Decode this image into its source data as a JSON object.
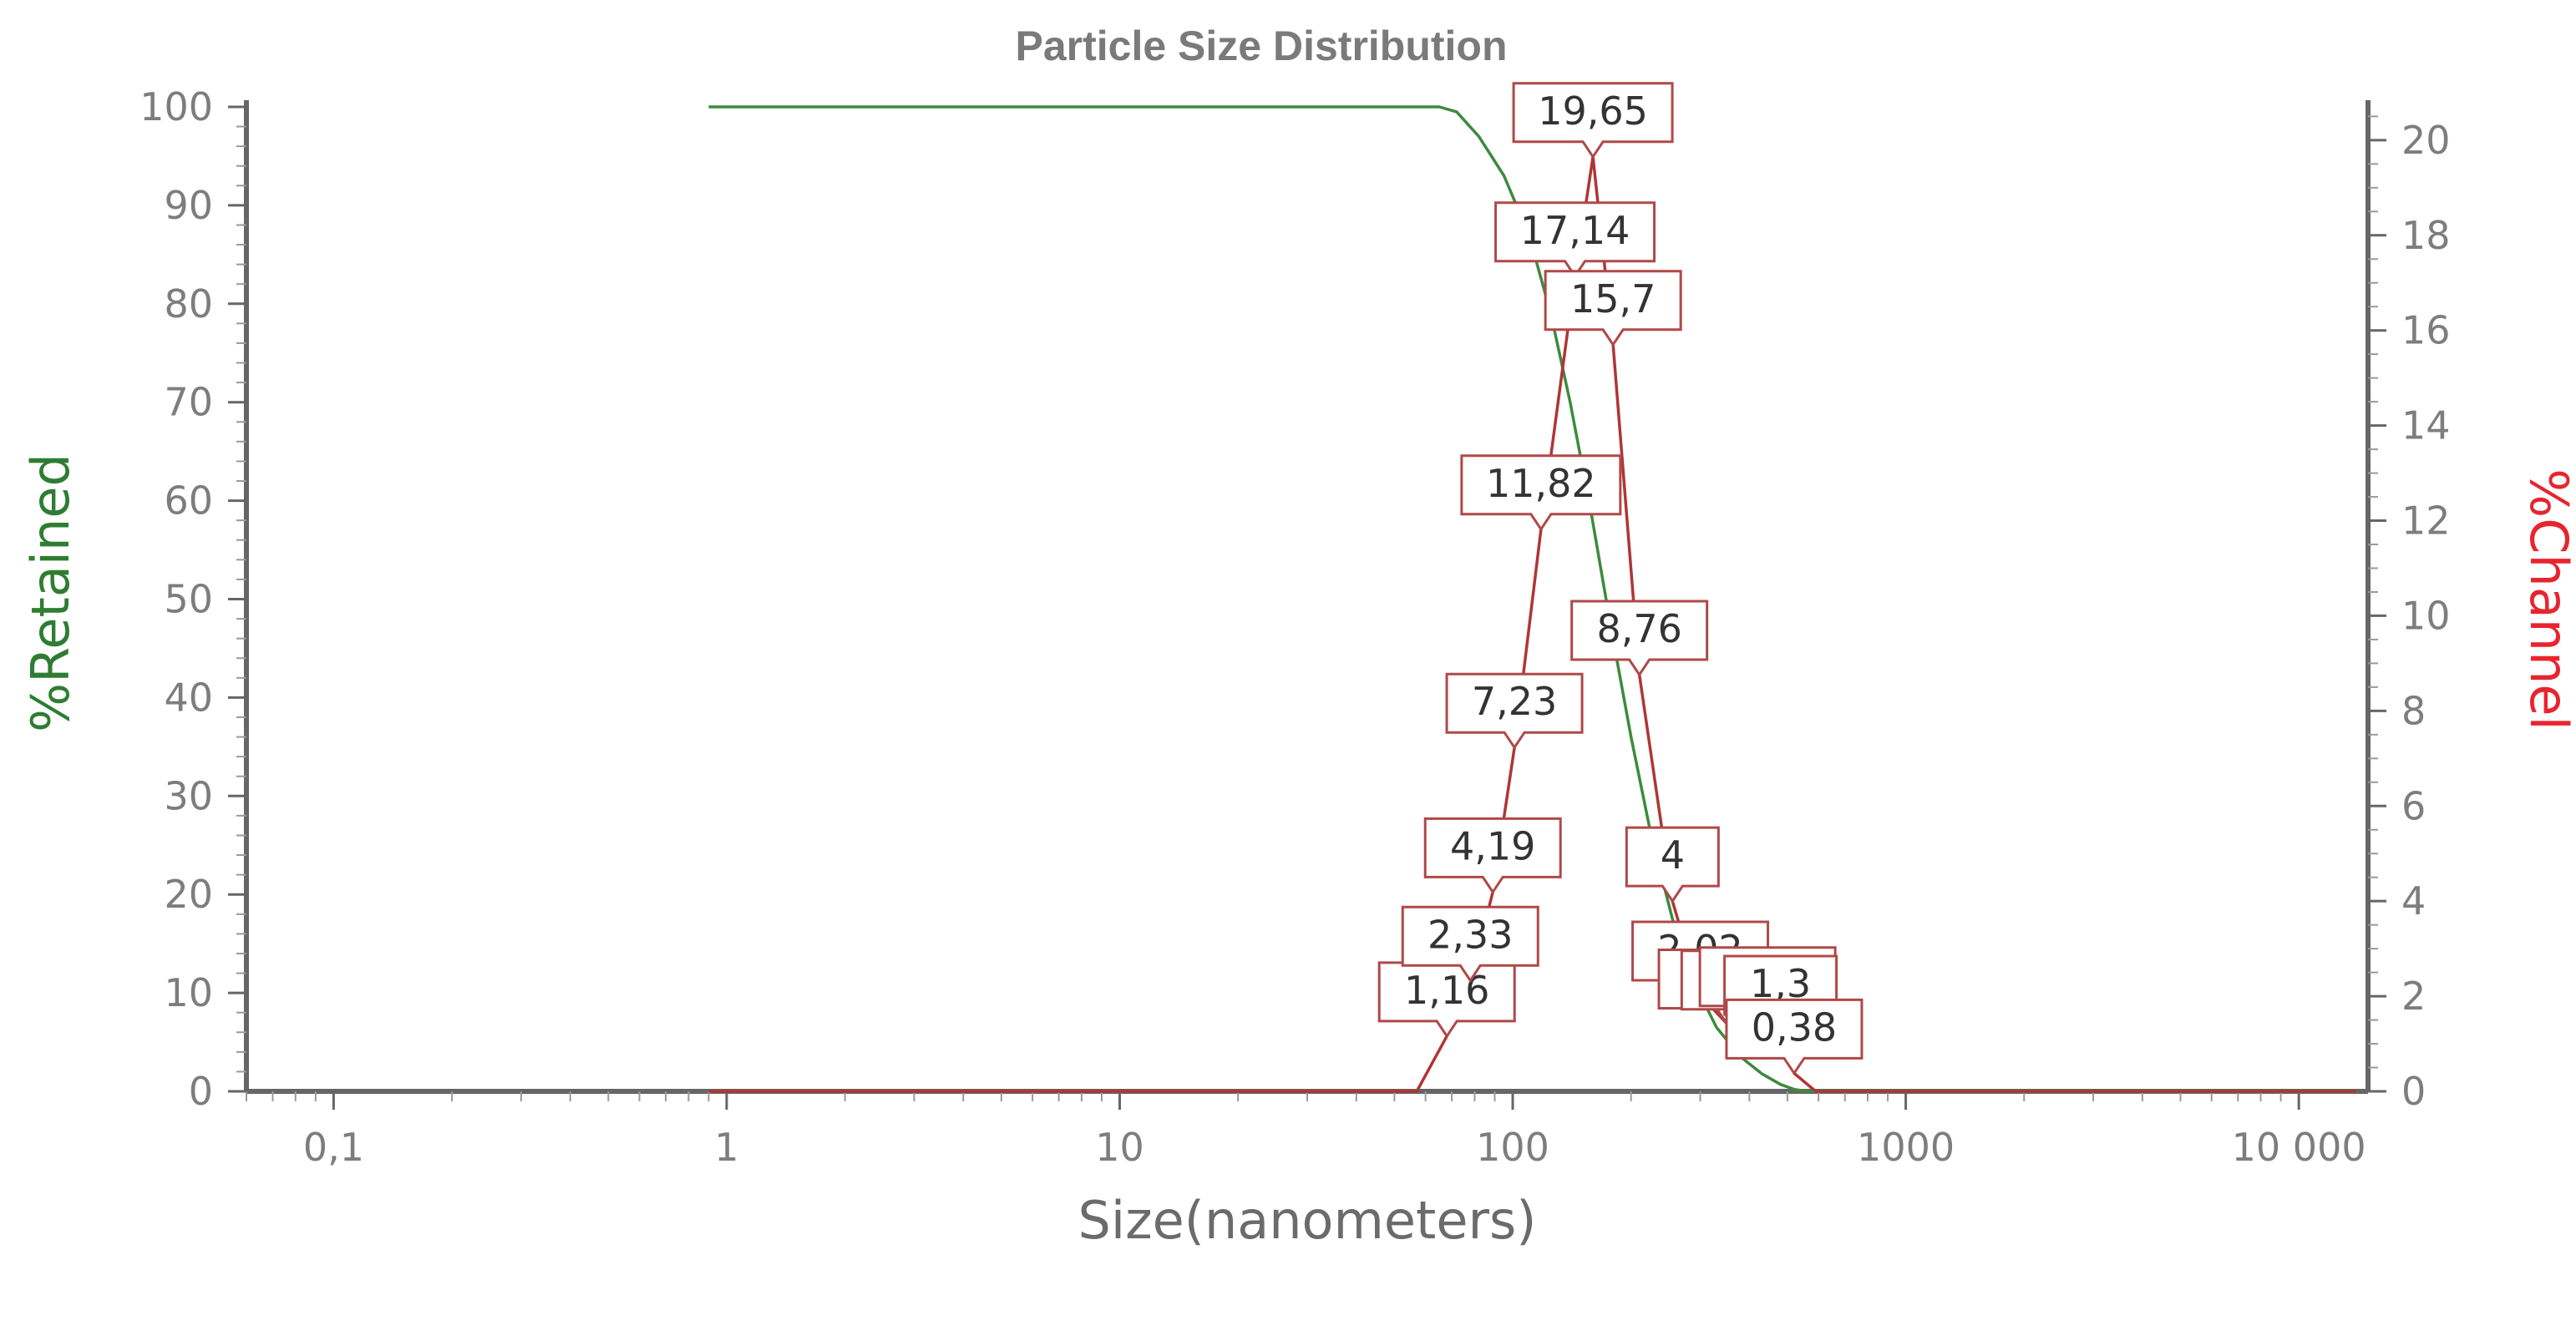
{
  "chart_data": {
    "type": "line",
    "title": "Particle Size Distribution",
    "xlabel": "Size(nanometers)",
    "ylabel_left": "%Retained",
    "ylabel_right": "%Channel",
    "x_scale": "log",
    "x_range": [
      0.06,
      15000
    ],
    "x_ticks": [
      {
        "value": 0.1,
        "label": "0,1"
      },
      {
        "value": 1,
        "label": "1"
      },
      {
        "value": 10,
        "label": "10"
      },
      {
        "value": 100,
        "label": "100"
      },
      {
        "value": 1000,
        "label": "1000"
      },
      {
        "value": 10000,
        "label": "10 000"
      }
    ],
    "y_left_range": [
      0,
      100
    ],
    "y_left_ticks": [
      0,
      10,
      20,
      30,
      40,
      50,
      60,
      70,
      80,
      90,
      100
    ],
    "y_right_range": [
      0,
      20.7
    ],
    "y_right_ticks": [
      0,
      2,
      4,
      6,
      8,
      10,
      12,
      14,
      16,
      18,
      20
    ],
    "grid": false,
    "colors": {
      "retained": "#3d8a3d",
      "channel": "#b03535",
      "left_axis_title": "#2e7d32",
      "right_axis_title": "#e8242e",
      "axis": "#666666",
      "label_border": "#b04848"
    },
    "series": [
      {
        "name": "%Retained",
        "axis": "left",
        "points": [
          [
            0.9,
            100
          ],
          [
            65,
            100
          ],
          [
            72,
            99.5
          ],
          [
            82,
            97
          ],
          [
            95,
            93
          ],
          [
            110,
            87
          ],
          [
            125,
            79
          ],
          [
            140,
            70
          ],
          [
            158,
            59
          ],
          [
            178,
            47
          ],
          [
            200,
            36
          ],
          [
            225,
            26
          ],
          [
            255,
            17.5
          ],
          [
            290,
            11
          ],
          [
            330,
            6.5
          ],
          [
            380,
            3.5
          ],
          [
            430,
            1.8
          ],
          [
            480,
            0.7
          ],
          [
            520,
            0.2
          ],
          [
            560,
            0
          ],
          [
            14000,
            0
          ]
        ]
      },
      {
        "name": "%Channel",
        "axis": "right",
        "points": [
          [
            0.9,
            0
          ],
          [
            57,
            0
          ],
          [
            68,
            1.16
          ],
          [
            78,
            2.33
          ],
          [
            89,
            4.19
          ],
          [
            101,
            7.23
          ],
          [
            118,
            11.82
          ],
          [
            144,
            17.14
          ],
          [
            160,
            19.65
          ],
          [
            180,
            15.7
          ],
          [
            210,
            8.76
          ],
          [
            255,
            4
          ],
          [
            300,
            2.02
          ],
          [
            350,
            1.43
          ],
          [
            400,
            1.41
          ],
          [
            445,
            1.48
          ],
          [
            480,
            1.3
          ],
          [
            520,
            0.38
          ],
          [
            590,
            0
          ],
          [
            14000,
            0
          ]
        ]
      }
    ],
    "data_labels": [
      "1,16",
      "2,33",
      "4,19",
      "7,23",
      "11,82",
      "17,14",
      "19,65",
      "15,7",
      "8,76",
      "4",
      "2,02",
      "1,43",
      "1,41",
      "1,48",
      "1,3",
      "0,38"
    ]
  }
}
